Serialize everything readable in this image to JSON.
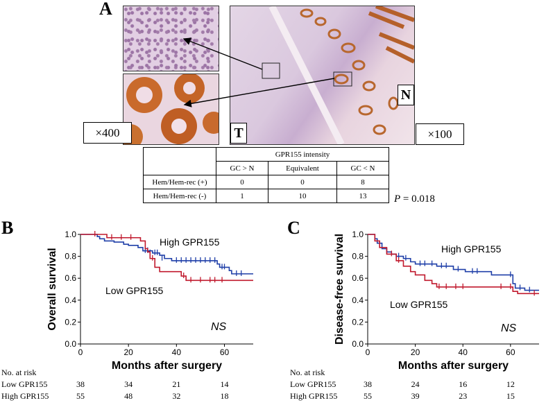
{
  "panels": {
    "a": "A",
    "b": "B",
    "c": "C"
  },
  "micrograph": {
    "mag_low": "×400",
    "mag_high": "×100",
    "label_tumor": "T",
    "label_normal": "N"
  },
  "table": {
    "header_group": "GPR155 intensity",
    "columns": [
      "GC > N",
      "Equivalent",
      "GC < N"
    ],
    "rows": [
      {
        "label": "Hem/Hem-rec (+)",
        "values": [
          "0",
          "0",
          "8"
        ]
      },
      {
        "label": "Hem/Hem-rec (-)",
        "values": [
          "1",
          "10",
          "13"
        ]
      }
    ],
    "p_prefix": "P",
    "p_suffix": " = 0.018"
  },
  "risk_title": "No. at risk",
  "colors": {
    "high": "#1f3fa8",
    "low": "#c0182c"
  },
  "chart_data": [
    {
      "type": "line",
      "panel": "B",
      "ylabel": "Overall survival",
      "xlabel": "Months after surgery",
      "xlim": [
        0,
        72
      ],
      "ylim": [
        0,
        1.0
      ],
      "xticks": [
        0,
        20,
        40,
        60
      ],
      "yticks": [
        "0.0",
        "0.2",
        "0.4",
        "0.6",
        "0.8",
        "1.0"
      ],
      "annotation": "NS",
      "series": [
        {
          "name": "High GPR155",
          "color": "#1f3fa8",
          "steps": [
            [
              0,
              1.0
            ],
            [
              7,
              0.98
            ],
            [
              8,
              0.96
            ],
            [
              10,
              0.94
            ],
            [
              14,
              0.93
            ],
            [
              18,
              0.91
            ],
            [
              20,
              0.9
            ],
            [
              24,
              0.88
            ],
            [
              26,
              0.85
            ],
            [
              30,
              0.83
            ],
            [
              33,
              0.81
            ],
            [
              35,
              0.78
            ],
            [
              38,
              0.76
            ],
            [
              57,
              0.73
            ],
            [
              58,
              0.7
            ],
            [
              62,
              0.67
            ],
            [
              63,
              0.64
            ],
            [
              72,
              0.64
            ]
          ],
          "censors": [
            [
              27,
              0.85
            ],
            [
              28,
              0.85
            ],
            [
              29,
              0.83
            ],
            [
              31,
              0.83
            ],
            [
              32,
              0.83
            ],
            [
              34,
              0.78
            ],
            [
              40,
              0.76
            ],
            [
              42,
              0.76
            ],
            [
              44,
              0.76
            ],
            [
              46,
              0.76
            ],
            [
              48,
              0.76
            ],
            [
              50,
              0.76
            ],
            [
              52,
              0.76
            ],
            [
              54,
              0.76
            ],
            [
              56,
              0.76
            ],
            [
              59,
              0.7
            ],
            [
              60,
              0.7
            ],
            [
              65,
              0.64
            ],
            [
              67,
              0.64
            ]
          ]
        },
        {
          "name": "Low GPR155",
          "color": "#c0182c",
          "steps": [
            [
              0,
              1.0
            ],
            [
              11,
              0.97
            ],
            [
              25,
              0.94
            ],
            [
              27,
              0.87
            ],
            [
              28,
              0.84
            ],
            [
              29,
              0.78
            ],
            [
              31,
              0.7
            ],
            [
              33,
              0.66
            ],
            [
              42,
              0.62
            ],
            [
              44,
              0.58
            ],
            [
              72,
              0.58
            ]
          ],
          "censors": [
            [
              6,
              1.0
            ],
            [
              13,
              0.97
            ],
            [
              17,
              0.97
            ],
            [
              21,
              0.97
            ],
            [
              30,
              0.78
            ],
            [
              43,
              0.62
            ],
            [
              46,
              0.58
            ],
            [
              50,
              0.58
            ],
            [
              54,
              0.58
            ],
            [
              56,
              0.58
            ],
            [
              59,
              0.58
            ]
          ]
        }
      ],
      "series_labels": [
        "High GPR155",
        "Low GPR155"
      ],
      "at_risk": {
        "xticks": [
          0,
          20,
          40,
          60
        ],
        "rows": [
          {
            "label": "Low GPR155",
            "values": [
              "38",
              "34",
              "21",
              "14"
            ]
          },
          {
            "label": "High GPR155",
            "values": [
              "55",
              "48",
              "32",
              "18"
            ]
          }
        ]
      }
    },
    {
      "type": "line",
      "panel": "C",
      "ylabel": "Disease-free survival",
      "xlabel": "Months after surgery",
      "xlim": [
        0,
        72
      ],
      "ylim": [
        0,
        1.0
      ],
      "xticks": [
        0,
        20,
        40,
        60
      ],
      "yticks": [
        "0.0",
        "0.2",
        "0.4",
        "0.6",
        "0.8",
        "1.0"
      ],
      "annotation": "NS",
      "series": [
        {
          "name": "High GPR155",
          "color": "#1f3fa8",
          "steps": [
            [
              0,
              1.0
            ],
            [
              3,
              0.96
            ],
            [
              4,
              0.92
            ],
            [
              6,
              0.87
            ],
            [
              8,
              0.84
            ],
            [
              10,
              0.82
            ],
            [
              12,
              0.8
            ],
            [
              15,
              0.78
            ],
            [
              18,
              0.75
            ],
            [
              20,
              0.73
            ],
            [
              29,
              0.71
            ],
            [
              36,
              0.68
            ],
            [
              41,
              0.66
            ],
            [
              52,
              0.63
            ],
            [
              61,
              0.55
            ],
            [
              62,
              0.51
            ],
            [
              66,
              0.49
            ],
            [
              72,
              0.49
            ]
          ],
          "censors": [
            [
              13,
              0.8
            ],
            [
              16,
              0.78
            ],
            [
              22,
              0.73
            ],
            [
              24,
              0.73
            ],
            [
              27,
              0.73
            ],
            [
              31,
              0.71
            ],
            [
              33,
              0.71
            ],
            [
              38,
              0.68
            ],
            [
              44,
              0.66
            ],
            [
              46,
              0.66
            ],
            [
              60,
              0.63
            ],
            [
              64,
              0.51
            ],
            [
              68,
              0.49
            ]
          ]
        },
        {
          "name": "Low GPR155",
          "color": "#c0182c",
          "steps": [
            [
              0,
              1.0
            ],
            [
              3,
              0.94
            ],
            [
              5,
              0.88
            ],
            [
              8,
              0.82
            ],
            [
              12,
              0.76
            ],
            [
              15,
              0.71
            ],
            [
              18,
              0.66
            ],
            [
              20,
              0.63
            ],
            [
              24,
              0.58
            ],
            [
              27,
              0.55
            ],
            [
              29,
              0.52
            ],
            [
              61,
              0.48
            ],
            [
              63,
              0.46
            ],
            [
              72,
              0.46
            ]
          ],
          "censors": [
            [
              10,
              0.82
            ],
            [
              13,
              0.76
            ],
            [
              30,
              0.52
            ],
            [
              33,
              0.52
            ],
            [
              37,
              0.52
            ],
            [
              40,
              0.52
            ],
            [
              56,
              0.52
            ],
            [
              60,
              0.52
            ],
            [
              70,
              0.46
            ]
          ]
        }
      ],
      "series_labels": [
        "High GPR155",
        "Low GPR155"
      ],
      "at_risk": {
        "xticks": [
          0,
          20,
          40,
          60
        ],
        "rows": [
          {
            "label": "Low GPR155",
            "values": [
              "38",
              "24",
              "16",
              "12"
            ]
          },
          {
            "label": "High GPR155",
            "values": [
              "55",
              "39",
              "23",
              "15"
            ]
          }
        ]
      }
    }
  ]
}
